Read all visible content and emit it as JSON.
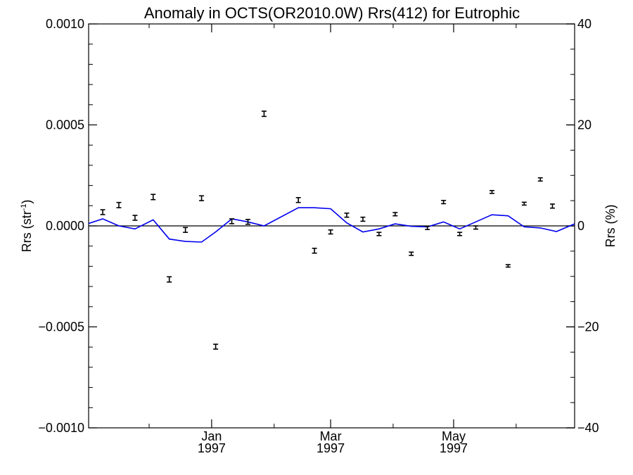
{
  "chart_data": {
    "type": "line",
    "title": "Anomaly in OCTS(OR2010.0W) Rrs(412) for Eutrophic",
    "ylabel_left": "Rrs (str",
    "ylabel_left_sup": "-1",
    "ylabel_left_close": ")",
    "ylabel_right": "Rrs (%)",
    "xlim": [
      "1996-11-01",
      "1997-06-30"
    ],
    "ylim_left": [
      -0.001,
      0.001
    ],
    "ylim_right": [
      -40,
      40
    ],
    "left_ticks": [
      {
        "value": 0.001,
        "label": "0.0010"
      },
      {
        "value": 0.0005,
        "label": "0.0005"
      },
      {
        "value": 0.0,
        "label": "0.0000"
      },
      {
        "value": -0.0005,
        "label": "−0.0005"
      },
      {
        "value": -0.001,
        "label": "−0.0010"
      }
    ],
    "right_ticks": [
      {
        "value": 40,
        "label": "40"
      },
      {
        "value": 20,
        "label": "20"
      },
      {
        "value": 0,
        "label": "0"
      },
      {
        "value": -20,
        "label": "−20"
      },
      {
        "value": -40,
        "label": "−40"
      }
    ],
    "x_ticks": [
      {
        "date": "1997-01-01",
        "month": "Jan",
        "year": "1997"
      },
      {
        "date": "1997-03-01",
        "month": "Mar",
        "year": "1997"
      },
      {
        "date": "1997-05-01",
        "month": "May",
        "year": "1997"
      }
    ],
    "x_minor_ticks": [
      "1996-12-01",
      "1997-02-01",
      "1997-04-01",
      "1997-06-01"
    ],
    "series": [
      {
        "kind": "errorbar",
        "color": "#000000",
        "points": [
          {
            "x": "1996-11-08",
            "y": 6.8e-05,
            "err": 1.2e-05
          },
          {
            "x": "1996-11-16",
            "y": 0.000103,
            "err": 1.3e-05
          },
          {
            "x": "1996-11-24",
            "y": 4e-05,
            "err": 1.2e-05
          },
          {
            "x": "1996-12-03",
            "y": 0.000143,
            "err": 1.3e-05
          },
          {
            "x": "1996-12-11",
            "y": -0.000265,
            "err": 1.3e-05
          },
          {
            "x": "1996-12-19",
            "y": -2e-05,
            "err": 1.2e-05
          },
          {
            "x": "1996-12-27",
            "y": 0.000137,
            "err": 1.2e-05
          },
          {
            "x": "1997-01-03",
            "y": -0.000598,
            "err": 1.2e-05
          },
          {
            "x": "1997-01-11",
            "y": 2.3e-05,
            "err": 1.2e-05
          },
          {
            "x": "1997-01-19",
            "y": 2e-05,
            "err": 1.2e-05
          },
          {
            "x": "1997-01-27",
            "y": 0.000555,
            "err": 1.3e-05
          },
          {
            "x": "1997-02-13",
            "y": 0.000128,
            "err": 1.2e-05
          },
          {
            "x": "1997-02-21",
            "y": -0.000123,
            "err": 1.2e-05
          },
          {
            "x": "1997-03-01",
            "y": -3e-05,
            "err": 1e-05
          },
          {
            "x": "1997-03-09",
            "y": 5.3e-05,
            "err": 1e-05
          },
          {
            "x": "1997-03-17",
            "y": 3.3e-05,
            "err": 1e-05
          },
          {
            "x": "1997-03-25",
            "y": -4e-05,
            "err": 8e-06
          },
          {
            "x": "1997-04-02",
            "y": 5.8e-05,
            "err": 8e-06
          },
          {
            "x": "1997-04-10",
            "y": -0.000138,
            "err": 8e-06
          },
          {
            "x": "1997-04-18",
            "y": -1e-05,
            "err": 8e-06
          },
          {
            "x": "1997-04-26",
            "y": 0.000118,
            "err": 8e-06
          },
          {
            "x": "1997-05-04",
            "y": -4e-05,
            "err": 8e-06
          },
          {
            "x": "1997-05-12",
            "y": -8e-06,
            "err": 8e-06
          },
          {
            "x": "1997-05-20",
            "y": 0.000168,
            "err": 7e-06
          },
          {
            "x": "1997-05-28",
            "y": -0.000198,
            "err": 6e-06
          },
          {
            "x": "1997-06-05",
            "y": 0.00011,
            "err": 7e-06
          },
          {
            "x": "1997-06-13",
            "y": 0.00023,
            "err": 8e-06
          },
          {
            "x": "1997-06-19",
            "y": 9.8e-05,
            "err": 1e-05
          }
        ]
      },
      {
        "kind": "line",
        "color": "#0000ee",
        "points": [
          {
            "x": "1996-11-01",
            "y": 1.2e-05
          },
          {
            "x": "1996-11-08",
            "y": 3.5e-05
          },
          {
            "x": "1996-11-16",
            "y": 0.0
          },
          {
            "x": "1996-11-24",
            "y": -1.5e-05
          },
          {
            "x": "1996-12-03",
            "y": 3e-05
          },
          {
            "x": "1996-12-11",
            "y": -6.5e-05
          },
          {
            "x": "1996-12-19",
            "y": -7.7e-05
          },
          {
            "x": "1996-12-27",
            "y": -8e-05
          },
          {
            "x": "1997-01-03",
            "y": -3e-05
          },
          {
            "x": "1997-01-11",
            "y": 3.5e-05
          },
          {
            "x": "1997-01-19",
            "y": 2e-05
          },
          {
            "x": "1997-01-27",
            "y": 0.0
          },
          {
            "x": "1997-02-13",
            "y": 9e-05
          },
          {
            "x": "1997-02-21",
            "y": 9e-05
          },
          {
            "x": "1997-03-01",
            "y": 8.5e-05
          },
          {
            "x": "1997-03-09",
            "y": 1.5e-05
          },
          {
            "x": "1997-03-17",
            "y": -3e-05
          },
          {
            "x": "1997-03-25",
            "y": -1.5e-05
          },
          {
            "x": "1997-04-02",
            "y": 1e-05
          },
          {
            "x": "1997-04-10",
            "y": -2e-06
          },
          {
            "x": "1997-04-18",
            "y": -5e-06
          },
          {
            "x": "1997-04-26",
            "y": 2e-05
          },
          {
            "x": "1997-05-04",
            "y": -1.5e-05
          },
          {
            "x": "1997-05-12",
            "y": 2e-05
          },
          {
            "x": "1997-05-20",
            "y": 5.5e-05
          },
          {
            "x": "1997-05-28",
            "y": 5e-05
          },
          {
            "x": "1997-06-05",
            "y": -5e-06
          },
          {
            "x": "1997-06-13",
            "y": -1e-05
          },
          {
            "x": "1997-06-21",
            "y": -2.8e-05
          },
          {
            "x": "1997-06-30",
            "y": 1e-05
          }
        ]
      }
    ],
    "zero_line": 0.0,
    "grid": false,
    "legend": "none"
  }
}
